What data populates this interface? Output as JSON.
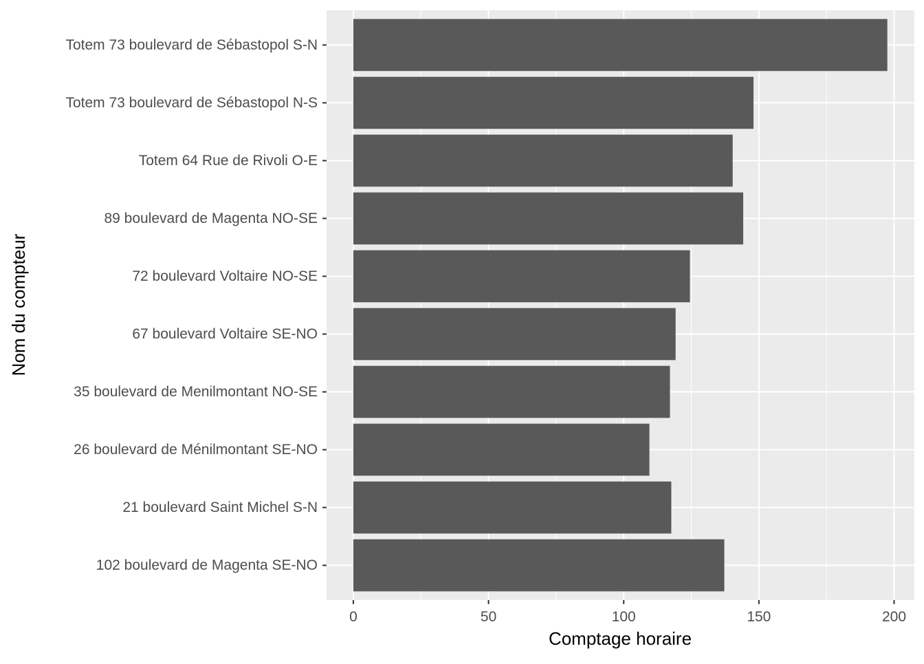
{
  "chart_data": {
    "type": "bar",
    "orientation": "horizontal",
    "categories": [
      "Totem 73 boulevard de Sébastopol S-N",
      "Totem 73 boulevard de Sébastopol N-S",
      "Totem 64 Rue de Rivoli O-E",
      "89 boulevard de Magenta NO-SE",
      "72 boulevard Voltaire NO-SE",
      "67 boulevard Voltaire SE-NO",
      "35 boulevard de Menilmontant NO-SE",
      "26 boulevard de Ménilmontant SE-NO",
      "21 boulevard Saint Michel S-N",
      "102 boulevard de Magenta SE-NO"
    ],
    "values": [
      197.5,
      148,
      140.3,
      144.2,
      124.5,
      119.2,
      117.1,
      109.5,
      117.6,
      137.2
    ],
    "xlabel": "Comptage horaire",
    "ylabel": "Nom du compteur",
    "xlim": [
      -9.9,
      207.5
    ],
    "x_ticks": [
      0,
      50,
      100,
      150,
      200
    ],
    "grid": true,
    "bar_color": "#595959",
    "panel_color": "#ebebeb",
    "grid_color": "#ffffff"
  }
}
